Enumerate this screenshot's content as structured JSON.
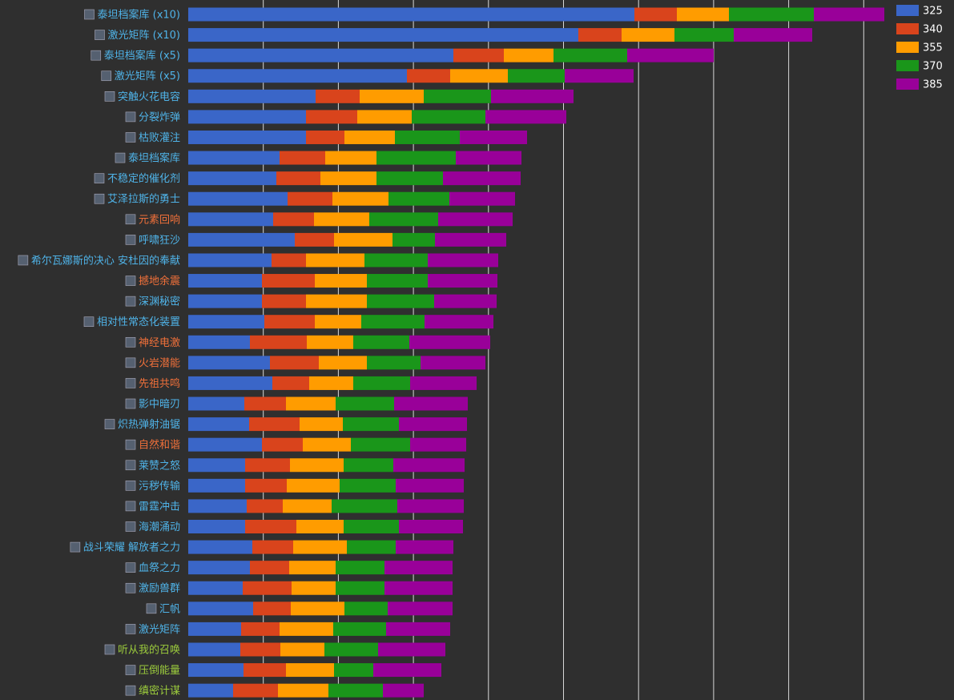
{
  "chart_data": {
    "type": "stacked-barh",
    "categories": [
      "泰坦档案库 (x10)",
      "激光矩阵 (x10)",
      "泰坦档案库 (x5)",
      "激光矩阵 (x5)",
      "突触火花电容",
      "分裂炸弹",
      "枯败灌注",
      "泰坦档案库",
      "不稳定的催化剂",
      "艾泽拉斯的勇士",
      "元素回响",
      "呼啸狂沙",
      "希尔瓦娜斯的决心 安杜因的奉献",
      "撼地余震",
      "深渊秘密",
      "相对性常态化装置",
      "神经电激",
      "火岩潜能",
      "先祖共鸣",
      "影中暗刃",
      "炽热弹射油锯",
      "自然和谐",
      "莱赞之怒",
      "污秽传输",
      "雷霆冲击",
      "海潮涌动",
      "战斗荣耀 解放者之力",
      "血祭之力",
      "激励兽群",
      "汇帆",
      "激光矩阵",
      "听从我的召唤",
      "压倒能量",
      "缜密计谋"
    ],
    "label_colors": [
      "#4fb3e8",
      "#4fb3e8",
      "#4fb3e8",
      "#4fb3e8",
      "#4fb3e8",
      "#4fb3e8",
      "#4fb3e8",
      "#4fb3e8",
      "#4fb3e8",
      "#4fb3e8",
      "#f0703a",
      "#4fb3e8",
      "#4fb3e8",
      "#f0703a",
      "#4fb3e8",
      "#4fb3e8",
      "#f0703a",
      "#f0703a",
      "#f0703a",
      "#4fb3e8",
      "#4fb3e8",
      "#f0703a",
      "#4fb3e8",
      "#4fb3e8",
      "#4fb3e8",
      "#4fb3e8",
      "#4fb3e8",
      "#4fb3e8",
      "#4fb3e8",
      "#4fb3e8",
      "#4fb3e8",
      "#9ccc3c",
      "#9ccc3c",
      "#9ccc3c"
    ],
    "series": [
      {
        "name": "325",
        "color": "#3a66c8",
        "values": [
          557,
          487,
          331,
          273,
          159,
          147,
          147,
          114,
          110,
          124,
          106,
          133,
          104,
          92,
          92,
          95,
          77,
          102,
          105,
          70,
          76,
          92,
          71,
          71,
          73,
          71,
          80,
          77,
          68,
          81,
          66,
          65,
          69,
          56
        ]
      },
      {
        "name": "340",
        "color": "#d9441c",
        "values": [
          53,
          54,
          63,
          54,
          55,
          64,
          48,
          57,
          55,
          56,
          51,
          49,
          43,
          66,
          55,
          63,
          71,
          61,
          46,
          52,
          63,
          51,
          56,
          52,
          45,
          64,
          51,
          49,
          61,
          47,
          48,
          50,
          53,
          56
        ]
      },
      {
        "name": "355",
        "color": "#ff9c00",
        "values": [
          65,
          66,
          62,
          72,
          80,
          68,
          63,
          64,
          70,
          70,
          69,
          73,
          73,
          65,
          76,
          58,
          58,
          60,
          55,
          62,
          54,
          60,
          67,
          66,
          61,
          59,
          67,
          58,
          55,
          67,
          67,
          55,
          60,
          63
        ]
      },
      {
        "name": "370",
        "color": "#1a961a",
        "values": [
          106,
          74,
          92,
          71,
          84,
          92,
          81,
          99,
          83,
          76,
          86,
          53,
          79,
          76,
          84,
          79,
          70,
          67,
          71,
          73,
          70,
          74,
          62,
          70,
          82,
          69,
          61,
          61,
          61,
          54,
          66,
          67,
          49,
          68
        ]
      },
      {
        "name": "385",
        "color": "#990099",
        "values": [
          88,
          98,
          108,
          86,
          103,
          101,
          84,
          82,
          97,
          82,
          93,
          89,
          88,
          87,
          78,
          86,
          101,
          81,
          83,
          92,
          85,
          70,
          89,
          85,
          83,
          80,
          72,
          85,
          85,
          81,
          80,
          84,
          85,
          51
        ]
      }
    ],
    "xlim": [
      0,
      956
    ],
    "xticks": [
      93.7,
      187.4,
      281.1,
      374.8,
      468.5,
      562.2,
      655.9,
      749.6,
      843.3
    ],
    "grid": true,
    "legend": "top-right"
  }
}
